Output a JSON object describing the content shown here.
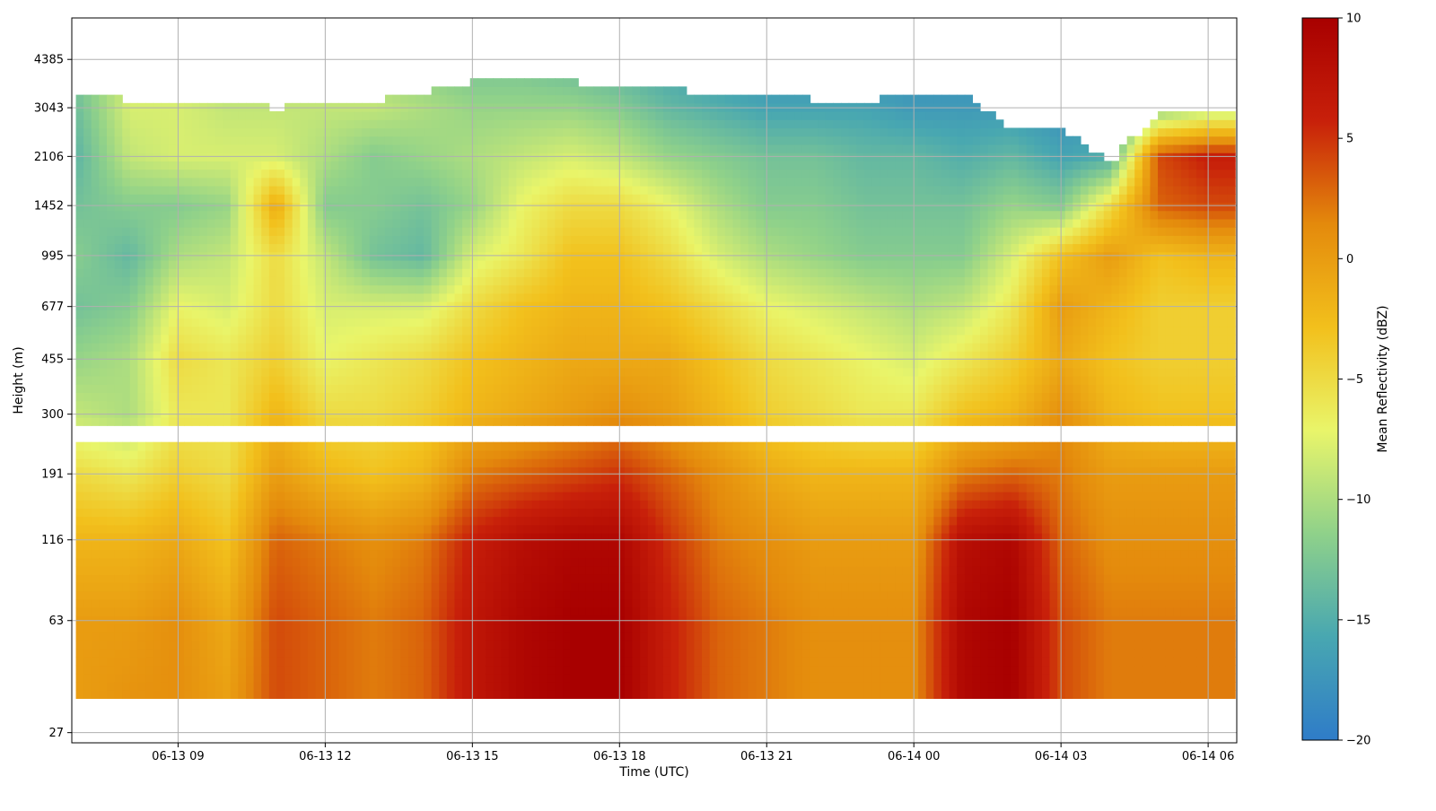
{
  "chart_data": {
    "type": "heatmap",
    "title": "",
    "xlabel": "Time (UTC)",
    "ylabel": "Height (m)",
    "x_ticks": [
      "06-13 09",
      "06-13 12",
      "06-13 15",
      "06-13 18",
      "06-13 21",
      "06-14 00",
      "06-14 03",
      "06-14 06"
    ],
    "x_range": [
      "06-13 06:50",
      "06-14 06:35"
    ],
    "y_ticks": [
      27,
      63,
      116,
      191,
      300,
      455,
      677,
      995,
      1452,
      2106,
      3043,
      4385
    ],
    "y_scale": "log",
    "y_range": [
      25,
      6000
    ],
    "grid": true,
    "colorbar": {
      "label": "Mean Reflectivity (dBZ)",
      "ticks": [
        10,
        5,
        0,
        -5,
        -10,
        -15,
        -20
      ],
      "vmin": -20,
      "vmax": 10,
      "colormap": [
        "#2f7cc8",
        "#48a7b1",
        "#8fd18a",
        "#e9f56a",
        "#f2c01c",
        "#e48a0c",
        "#c8200a",
        "#a80000"
      ]
    },
    "data_columns": [
      {
        "x": "06-13 07:00",
        "top": 3300,
        "profile": [
          0,
          0,
          -2,
          -5,
          -9,
          -11,
          -13,
          -12,
          -13,
          -14,
          -13,
          -12
        ]
      },
      {
        "x": "06-13 08:00",
        "top": 3250,
        "profile": [
          1,
          0,
          -2,
          -6,
          -10,
          -10,
          -12,
          -14,
          -12,
          -9,
          -8,
          -9
        ]
      },
      {
        "x": "06-13 09:00",
        "top": 3150,
        "profile": [
          1,
          1,
          -1,
          -4,
          -6,
          -5,
          -7,
          -10,
          -12,
          -8,
          -8,
          -9
        ]
      },
      {
        "x": "06-13 10:00",
        "top": 3100,
        "profile": [
          0,
          -1,
          -3,
          -5,
          -6,
          -6,
          -8,
          -9,
          -11,
          -8,
          -9,
          -10
        ]
      },
      {
        "x": "06-13 11:00",
        "top": 3050,
        "profile": [
          4,
          4,
          3,
          0,
          -2,
          -4,
          -5,
          -5,
          -1,
          -8,
          -9,
          -10
        ]
      },
      {
        "x": "06-13 12:00",
        "top": 3100,
        "profile": [
          3,
          3,
          2,
          -2,
          -5,
          -7,
          -8,
          -9,
          -12,
          -10,
          -9,
          -10
        ]
      },
      {
        "x": "06-13 13:00",
        "top": 3200,
        "profile": [
          2,
          2,
          1,
          -3,
          -5,
          -6,
          -8,
          -13,
          -12,
          -12,
          -9,
          -11
        ]
      },
      {
        "x": "06-13 14:00",
        "top": 3400,
        "profile": [
          3,
          3,
          2,
          -2,
          -4,
          -5,
          -8,
          -14,
          -13,
          -11,
          -10,
          -12
        ]
      },
      {
        "x": "06-13 15:00",
        "top": 3700,
        "profile": [
          7,
          7,
          6,
          2,
          -2,
          -3,
          -5,
          -8,
          -11,
          -10,
          -11,
          -13
        ]
      },
      {
        "x": "06-13 16:00",
        "top": 3800,
        "profile": [
          9,
          9,
          8,
          3,
          -1,
          -2,
          -3,
          -6,
          -7,
          -9,
          -11,
          -13
        ]
      },
      {
        "x": "06-13 17:00",
        "top": 3700,
        "profile": [
          10,
          10,
          9,
          4,
          0,
          -1,
          -2,
          -3,
          -5,
          -8,
          -11,
          -14
        ]
      },
      {
        "x": "06-13 18:00",
        "top": 3600,
        "profile": [
          10,
          10,
          9,
          5,
          1,
          -1,
          -2,
          -3,
          -5,
          -9,
          -12,
          -15
        ]
      },
      {
        "x": "06-13 19:00",
        "top": 3500,
        "profile": [
          6,
          6,
          5,
          3,
          0,
          -1,
          -3,
          -5,
          -7,
          -11,
          -14,
          -16
        ]
      },
      {
        "x": "06-13 20:00",
        "top": 3400,
        "profile": [
          3,
          3,
          2,
          1,
          -2,
          -3,
          -5,
          -8,
          -10,
          -12,
          -15,
          -17
        ]
      },
      {
        "x": "06-13 21:00",
        "top": 3300,
        "profile": [
          2,
          2,
          1,
          -1,
          -4,
          -5,
          -7,
          -10,
          -12,
          -13,
          -16,
          -18
        ]
      },
      {
        "x": "06-13 22:00",
        "top": 3250,
        "profile": [
          1,
          1,
          0,
          -2,
          -5,
          -6,
          -8,
          -11,
          -12,
          -13,
          -16,
          -18
        ]
      },
      {
        "x": "06-13 23:00",
        "top": 3200,
        "profile": [
          1,
          1,
          0,
          -2,
          -6,
          -7,
          -9,
          -12,
          -13,
          -14,
          -16,
          -18
        ]
      },
      {
        "x": "06-14 00:00",
        "top": 3400,
        "profile": [
          1,
          1,
          0,
          -2,
          -6,
          -8,
          -10,
          -12,
          -13,
          -14,
          -17,
          -18
        ]
      },
      {
        "x": "06-14 01:00",
        "top": 3400,
        "profile": [
          9,
          9,
          8,
          2,
          -3,
          -6,
          -9,
          -12,
          -13,
          -15,
          -17,
          -18
        ]
      },
      {
        "x": "06-14 02:00",
        "top": 2600,
        "profile": [
          10,
          10,
          9,
          3,
          -2,
          -4,
          -6,
          -8,
          -11,
          -14,
          -17,
          -18
        ]
      },
      {
        "x": "06-14 03:00",
        "top": 2600,
        "profile": [
          4,
          4,
          3,
          2,
          1,
          -1,
          0,
          -3,
          -12,
          -16,
          -18,
          -19
        ]
      },
      {
        "x": "06-14 04:00",
        "top": 2000,
        "profile": [
          2,
          2,
          1,
          0,
          -2,
          -3,
          -2,
          0,
          -5,
          -15,
          -18,
          -19
        ]
      },
      {
        "x": "06-14 05:00",
        "top": 2900,
        "profile": [
          2,
          2,
          1,
          0,
          -3,
          -4,
          -4,
          -3,
          3,
          4,
          -12,
          -14
        ]
      },
      {
        "x": "06-14 06:00",
        "top": 3000,
        "profile": [
          2,
          2,
          1,
          0,
          -3,
          -4,
          -4,
          -2,
          4,
          6,
          -10,
          -13
        ]
      }
    ],
    "gap_band": [
      240,
      270
    ]
  }
}
